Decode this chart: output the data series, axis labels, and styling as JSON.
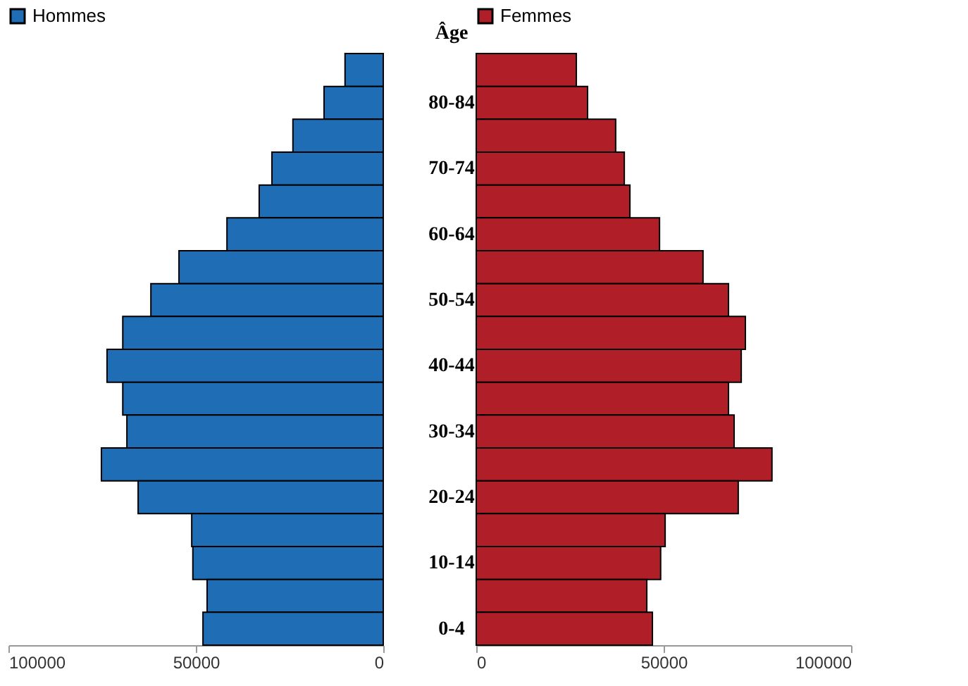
{
  "chart_data": [
    {
      "type": "bar",
      "orientation": "horizontal",
      "ylabel": "Âge",
      "categories": [
        null,
        "80-84",
        null,
        "70-74",
        null,
        "60-64",
        null,
        "50-54",
        null,
        "40-44",
        null,
        "30-34",
        null,
        "20-24",
        null,
        "10-14",
        null,
        "0-4"
      ],
      "xlim": [
        100000,
        0
      ],
      "xticks": [
        100000,
        50000,
        0
      ],
      "grid": false,
      "legend": "top",
      "series": [
        {
          "name": "Hommes",
          "color": "#1f6db4",
          "values": [
            10200,
            15800,
            24100,
            29700,
            33100,
            41700,
            54500,
            62000,
            69500,
            73700,
            69500,
            68400,
            75200,
            65400,
            51100,
            50800,
            47000,
            48100
          ]
        }
      ]
    },
    {
      "type": "bar",
      "orientation": "horizontal",
      "xlim": [
        0,
        100000
      ],
      "xticks": [
        0,
        50000,
        100000
      ],
      "grid": false,
      "legend": "top",
      "tick_labels": "x",
      "series": [
        {
          "name": "Femmes",
          "color": "#b01f27",
          "values": [
            26700,
            29700,
            37200,
            39500,
            41000,
            48900,
            60500,
            67300,
            71800,
            70700,
            67300,
            68800,
            78900,
            69900,
            50400,
            49200,
            45500,
            47000
          ]
        }
      ]
    }
  ]
}
